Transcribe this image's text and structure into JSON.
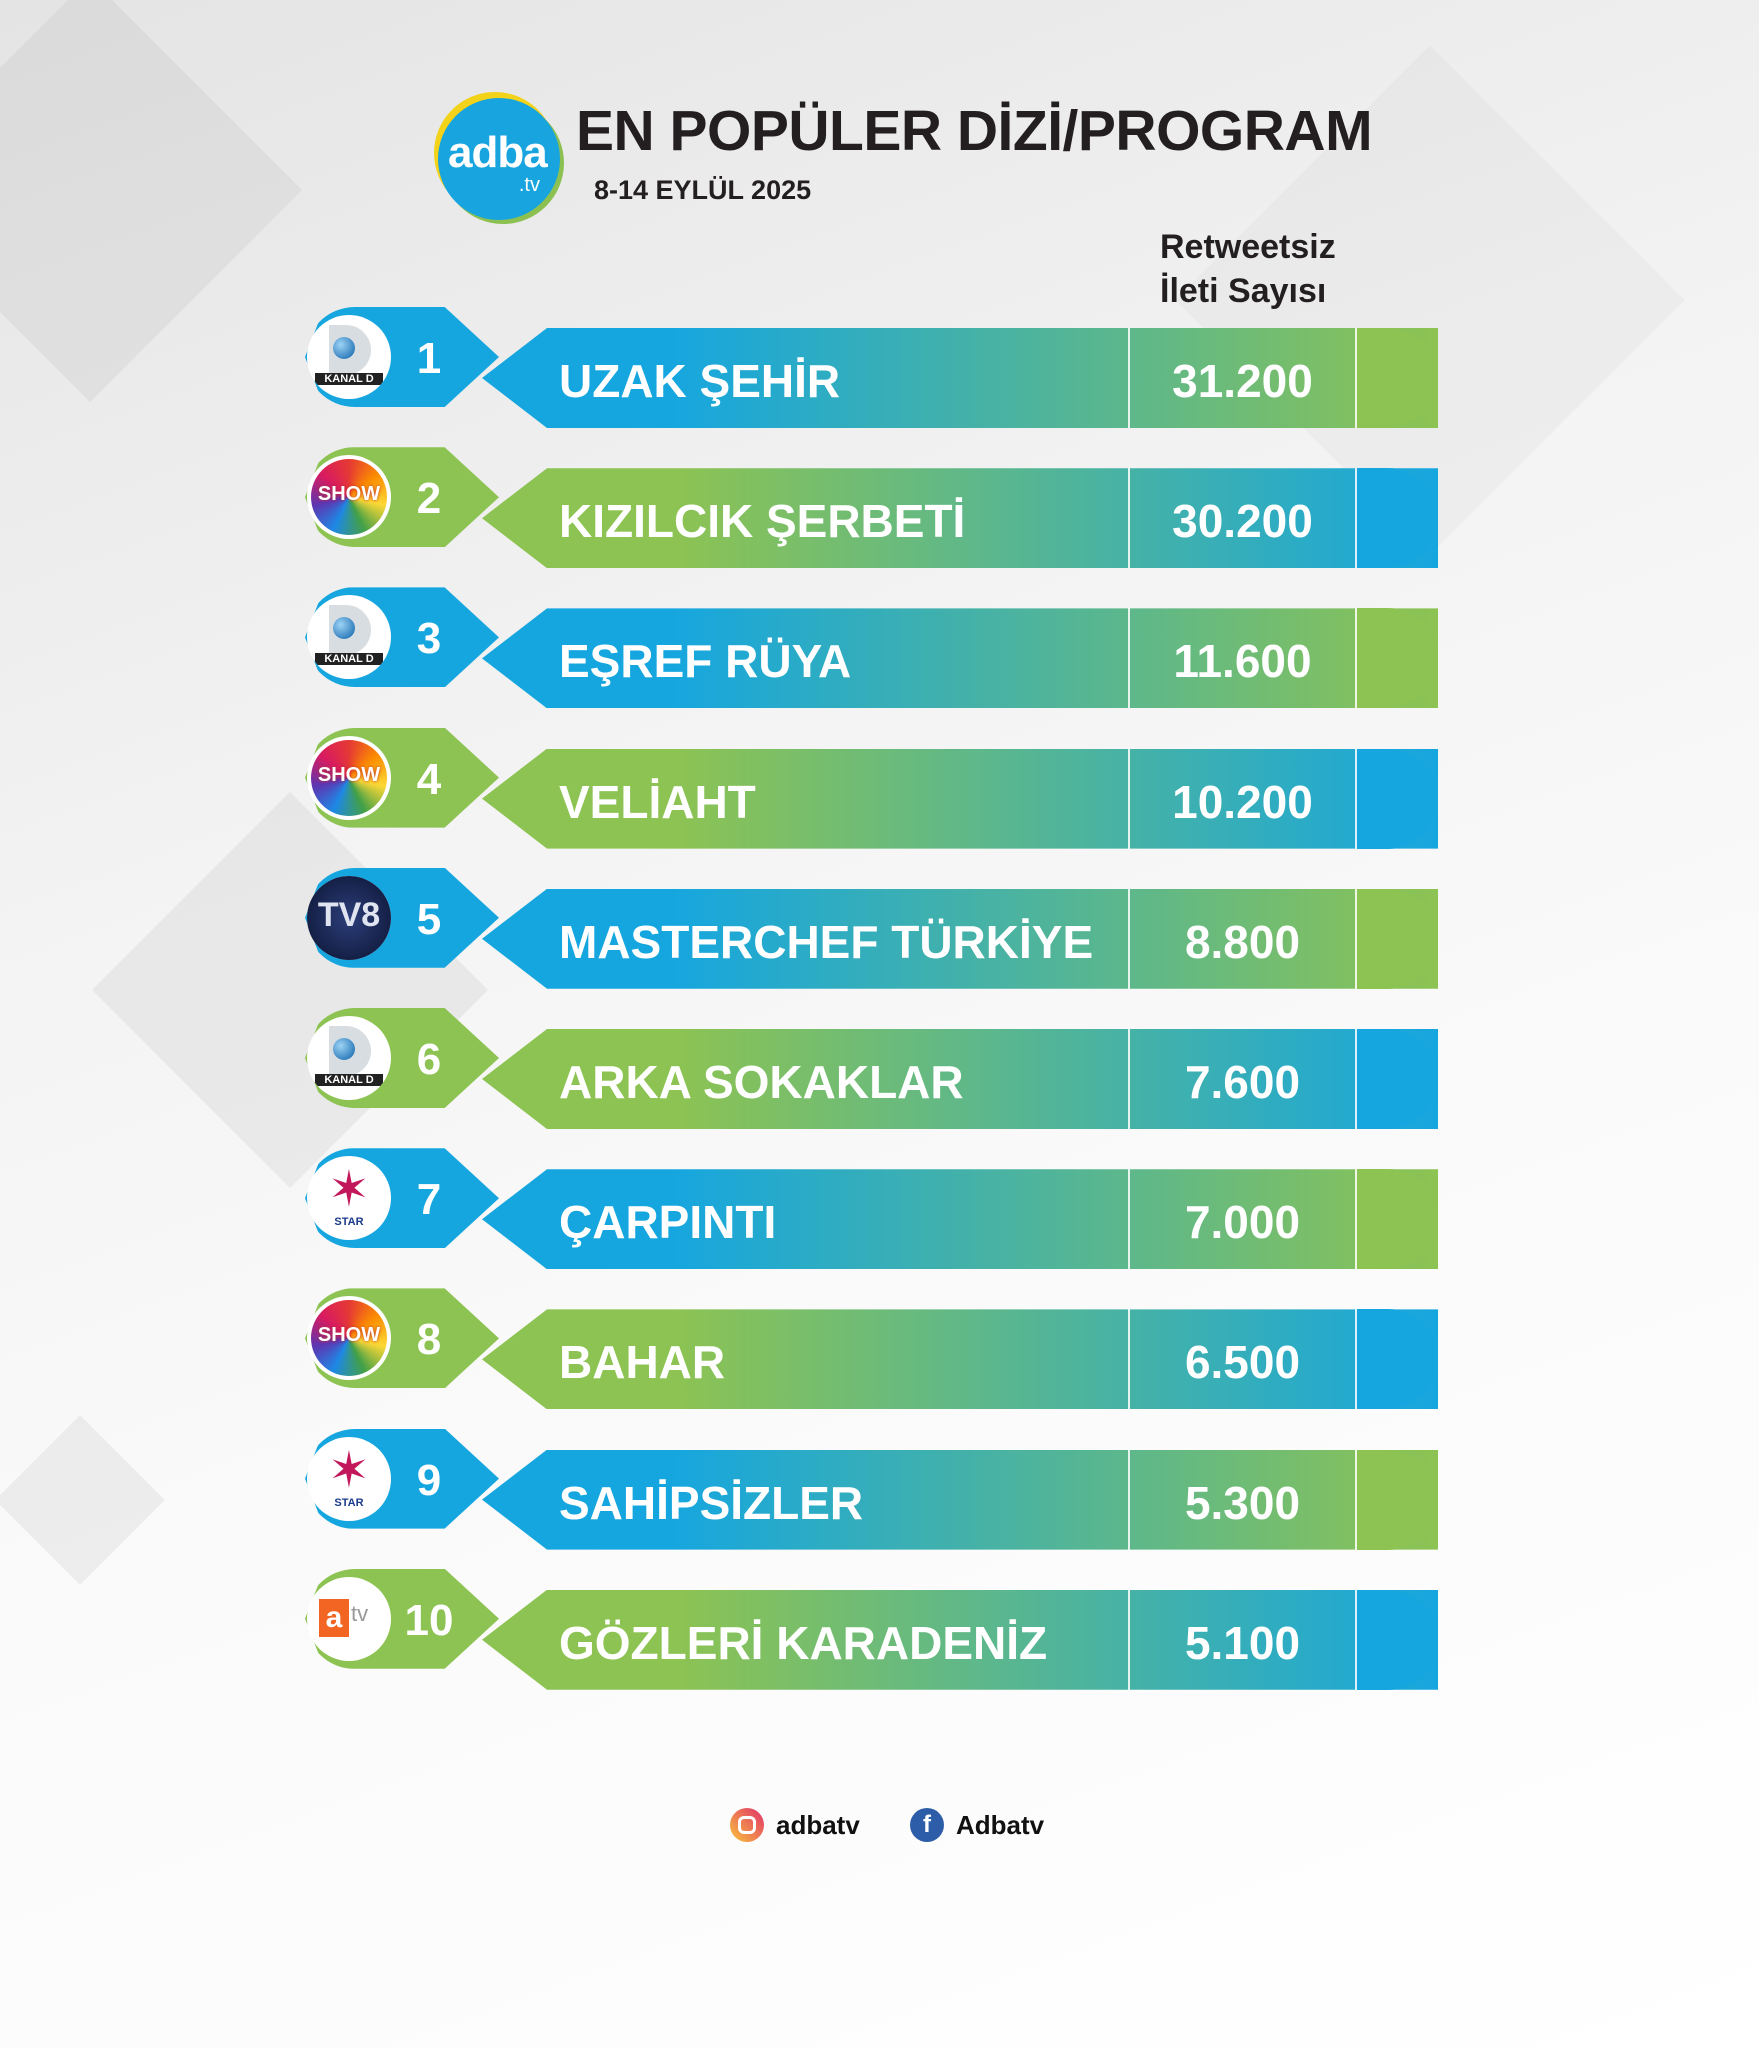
{
  "logo": {
    "main": "adba",
    "sub": ".tv"
  },
  "header": {
    "title": "EN POPÜLER DİZİ/PROGRAM",
    "date": "8-14 EYLÜL 2025",
    "column_line1": "Retweetsiz",
    "column_line2": "İleti Sayısı"
  },
  "colors": {
    "blue": "#16a6df",
    "green": "#8dc352"
  },
  "rows": [
    {
      "rank": "1",
      "channel": "Kanal D",
      "channel_label": "KANAL D",
      "title": "UZAK ŞEHİR",
      "value": "31.200",
      "theme": "blue"
    },
    {
      "rank": "2",
      "channel": "Show TV",
      "channel_label": "SHOW",
      "title": "KIZILCIK ŞERBETİ",
      "value": "30.200",
      "theme": "green"
    },
    {
      "rank": "3",
      "channel": "Kanal D",
      "channel_label": "KANAL D",
      "title": "EŞREF RÜYA",
      "value": "11.600",
      "theme": "blue"
    },
    {
      "rank": "4",
      "channel": "Show TV",
      "channel_label": "SHOW",
      "title": "VELİAHT",
      "value": "10.200",
      "theme": "green"
    },
    {
      "rank": "5",
      "channel": "TV8",
      "channel_label": "TV8",
      "title": "MASTERCHEF TÜRKİYE",
      "value": "8.800",
      "theme": "blue"
    },
    {
      "rank": "6",
      "channel": "Kanal D",
      "channel_label": "KANAL D",
      "title": "ARKA SOKAKLAR",
      "value": "7.600",
      "theme": "green"
    },
    {
      "rank": "7",
      "channel": "Star TV",
      "channel_label": "STAR",
      "title": "ÇARPINTI",
      "value": "7.000",
      "theme": "blue"
    },
    {
      "rank": "8",
      "channel": "Show TV",
      "channel_label": "SHOW",
      "title": "BAHAR",
      "value": "6.500",
      "theme": "green"
    },
    {
      "rank": "9",
      "channel": "Star TV",
      "channel_label": "STAR",
      "title": "SAHİPSİZLER",
      "value": "5.300",
      "theme": "blue"
    },
    {
      "rank": "10",
      "channel": "atv",
      "channel_label": "atv",
      "title": "GÖZLERİ KARADENİZ",
      "value": "5.100",
      "theme": "green"
    }
  ],
  "footer": {
    "instagram": "adbatv",
    "facebook": "Adbatv",
    "instagram_icon": "instagram-icon",
    "facebook_icon": "facebook-icon"
  }
}
